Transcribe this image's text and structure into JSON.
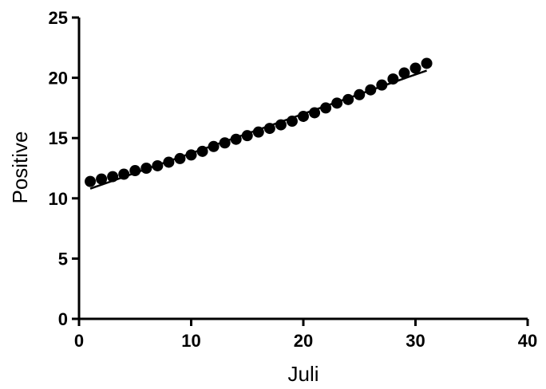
{
  "chart_data": {
    "type": "scatter",
    "xlabel": "Juli",
    "ylabel": "Positive",
    "xlim": [
      0,
      40
    ],
    "ylim": [
      0,
      25
    ],
    "x_ticks": [
      0,
      10,
      20,
      30,
      40
    ],
    "y_ticks": [
      0,
      5,
      10,
      15,
      20,
      25
    ],
    "grid": false,
    "marker_color": "#000000",
    "series": [
      {
        "x": [
          1,
          2,
          3,
          4,
          5,
          6,
          7,
          8,
          9,
          10,
          11,
          12,
          13,
          14,
          15,
          16,
          17,
          18,
          19,
          20,
          21,
          22,
          23,
          24,
          25,
          26,
          27,
          28,
          29,
          30,
          31
        ],
        "values": [
          11.4,
          11.6,
          11.8,
          12.0,
          12.3,
          12.5,
          12.7,
          13.0,
          13.3,
          13.6,
          13.9,
          14.3,
          14.6,
          14.9,
          15.2,
          15.5,
          15.8,
          16.1,
          16.4,
          16.8,
          17.1,
          17.5,
          17.9,
          18.2,
          18.6,
          19.0,
          19.4,
          19.9,
          20.4,
          20.8,
          21.2
        ]
      }
    ],
    "trend_line": {
      "x": [
        1,
        31
      ],
      "y": [
        10.8,
        20.6
      ]
    }
  }
}
